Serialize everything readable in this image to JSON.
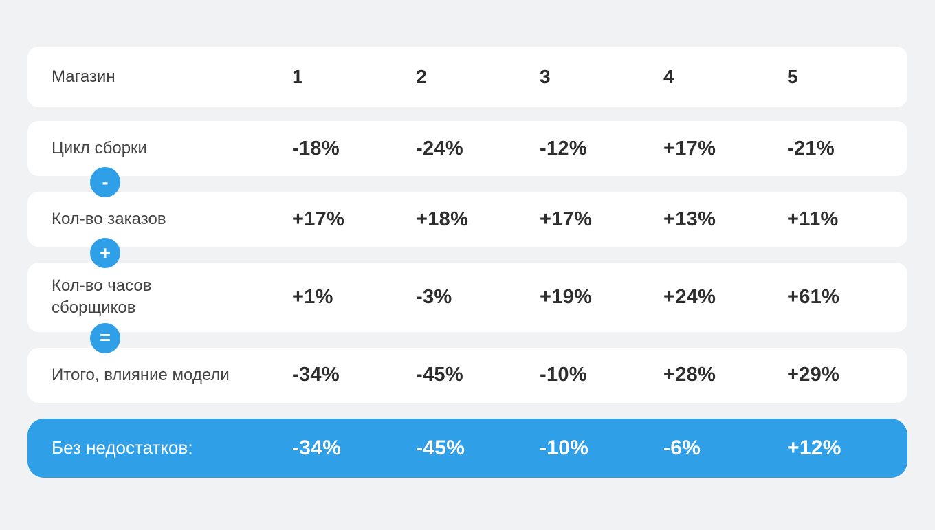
{
  "colors": {
    "background": "#f1f2f3",
    "row_background": "#ffffff",
    "accent_blue": "#2f9fe8",
    "text_dark": "#2e2e2e",
    "text_label": "#454545",
    "text_on_blue": "#ffffff"
  },
  "chart_data": {
    "type": "table",
    "title": "",
    "header": {
      "label": "Магазин",
      "columns": [
        "1",
        "2",
        "3",
        "4",
        "5"
      ]
    },
    "rows": [
      {
        "label": "Цикл сборки",
        "values": [
          "-18%",
          "-24%",
          "-12%",
          "+17%",
          "-21%"
        ],
        "operator_after": "-"
      },
      {
        "label": "Кол-во заказов",
        "values": [
          "+17%",
          "+18%",
          "+17%",
          "+13%",
          "+11%"
        ],
        "operator_after": "+"
      },
      {
        "label": "Кол-во часов\nсборщиков",
        "values": [
          "+1%",
          "-3%",
          "+19%",
          "+24%",
          "+61%"
        ],
        "operator_after": "="
      },
      {
        "label": "Итого, влияние модели",
        "values": [
          "-34%",
          "-45%",
          "-10%",
          "+28%",
          "+29%"
        ],
        "operator_after": ""
      }
    ],
    "total_row": {
      "label": "Без недостатков:",
      "values": [
        "-34%",
        "-45%",
        "-10%",
        "-6%",
        "+12%"
      ],
      "highlighted": true
    },
    "operators_between_rows": [
      "-",
      "+",
      "="
    ],
    "layout": "rounded row cards on light gray background, last row highlighted blue"
  }
}
